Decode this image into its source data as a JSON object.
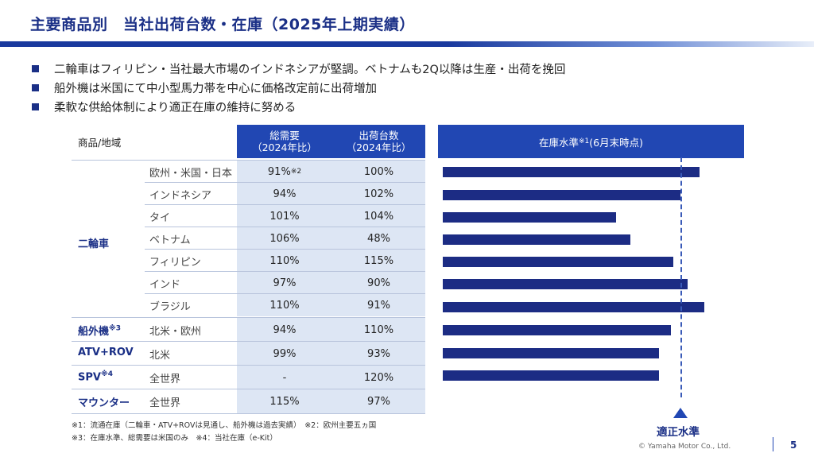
{
  "title": "主要商品別　当社出荷台数・在庫（2025年上期実績）",
  "bullets": [
    "二輪車はフィリピン・当社最大市場のインドネシアが堅調。ベトナムも2Q以降は生産・出荷を挽回",
    "船外機は米国にて中小型馬力帯を中心に価格改定前に出荷増加",
    "柔軟な供給体制により適正在庫の維持に努める"
  ],
  "table": {
    "header": {
      "col1": "商品/地域",
      "demand_line1": "総需要",
      "demand_line2": "（2024年比）",
      "shipments_line1": "出荷台数",
      "shipments_line2": "（2024年比）"
    },
    "categories": [
      {
        "name": "二輪車",
        "sup": ""
      },
      {
        "name": "船外機",
        "sup": "※3"
      },
      {
        "name": "ATV+ROV",
        "sup": ""
      },
      {
        "name": "SPV",
        "sup": "※4"
      },
      {
        "name": "マウンター",
        "sup": ""
      }
    ],
    "rows": [
      {
        "region": "欧州・米国・日本",
        "demand": "91%",
        "demand_sup": "※2",
        "shipments": "100%"
      },
      {
        "region": "インドネシア",
        "demand": "94%",
        "demand_sup": "",
        "shipments": "102%"
      },
      {
        "region": "タイ",
        "demand": "101%",
        "demand_sup": "",
        "shipments": "104%"
      },
      {
        "region": "ベトナム",
        "demand": "106%",
        "demand_sup": "",
        "shipments": "48%"
      },
      {
        "region": "フィリピン",
        "demand": "110%",
        "demand_sup": "",
        "shipments": "115%"
      },
      {
        "region": "インド",
        "demand": "97%",
        "demand_sup": "",
        "shipments": "90%"
      },
      {
        "region": "ブラジル",
        "demand": "110%",
        "demand_sup": "",
        "shipments": "91%"
      },
      {
        "region": "北米・欧州",
        "demand": "94%",
        "demand_sup": "",
        "shipments": "110%"
      },
      {
        "region": "北米",
        "demand": "99%",
        "demand_sup": "",
        "shipments": "93%"
      },
      {
        "region": "全世界",
        "demand": "-",
        "demand_sup": "",
        "shipments": "120%"
      },
      {
        "region": "全世界",
        "demand": "115%",
        "demand_sup": "",
        "shipments": "97%"
      }
    ]
  },
  "inventory": {
    "header_prefix": "在庫水準",
    "header_sup": "※1",
    "header_suffix": "(6月末時点)",
    "ideal_label": "適正水準"
  },
  "chart_data": {
    "type": "bar",
    "orientation": "horizontal",
    "title": "在庫水準※1(6月末時点)",
    "categories": [
      "欧州・米国・日本",
      "インドネシア",
      "タイ",
      "ベトナム",
      "フィリピン",
      "インド",
      "ブラジル",
      "北米・欧州",
      "北米",
      "全世界 (SPV)",
      "全世界 (マウンター)"
    ],
    "values": [
      1.08,
      1.0,
      0.73,
      0.79,
      0.97,
      1.03,
      1.1,
      0.96,
      0.91,
      0.91,
      null
    ],
    "value_unit": "ratio to appropriate level (1.0 = 適正水準)",
    "reference_line": {
      "label": "適正水準",
      "value": 1.0
    },
    "xlim": [
      0,
      1.3
    ],
    "color": "#1c2c84"
  },
  "footnotes": [
    "※1：流通在庫（二輪車・ATV+ROVは見通し、船外機は過去実績）　※2：欧州主要五ヵ国",
    "※3：在庫水準、総需要は米国のみ　※4：当社在庫（e-Kit）"
  ],
  "footer": {
    "copyright": "© Yamaha Motor Co., Ltd.",
    "page": "5"
  },
  "colors": {
    "brand": "#1a2f86",
    "header_blue": "#2147b3",
    "pale_blue": "#dde6f4",
    "bar": "#1c2c84"
  }
}
